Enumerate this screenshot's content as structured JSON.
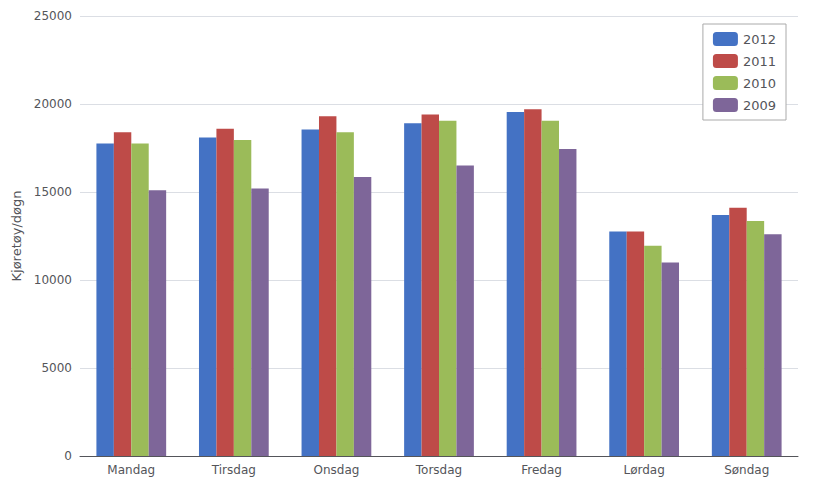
{
  "chart_data": {
    "type": "bar",
    "categories": [
      "Mandag",
      "Tirsdag",
      "Onsdag",
      "Torsdag",
      "Fredag",
      "Lørdag",
      "Søndag"
    ],
    "series": [
      {
        "name": "2012",
        "color": "#4472C4",
        "values": [
          17750,
          18100,
          18550,
          18900,
          19550,
          12750,
          13700
        ]
      },
      {
        "name": "2011",
        "color": "#BE4B48",
        "values": [
          18400,
          18600,
          19300,
          19400,
          19700,
          12750,
          14100
        ]
      },
      {
        "name": "2010",
        "color": "#9BBB59",
        "values": [
          17750,
          17950,
          18400,
          19050,
          19050,
          11950,
          13350
        ]
      },
      {
        "name": "2009",
        "color": "#7E6699",
        "values": [
          15100,
          15200,
          15850,
          16500,
          17450,
          11000,
          12600
        ]
      }
    ],
    "ylabel": "Kjøretøy/døgn",
    "ylim": [
      0,
      25000
    ],
    "yticks": [
      0,
      5000,
      10000,
      15000,
      20000,
      25000
    ],
    "grid": true,
    "legend": "upper right"
  }
}
